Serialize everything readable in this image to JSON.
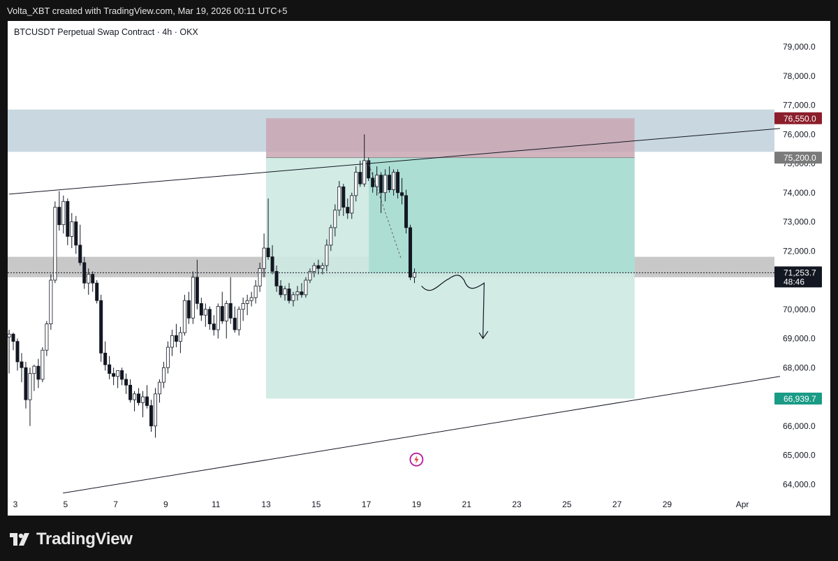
{
  "header": {
    "text": "Volta_XBT created with TradingView.com, Mar 19, 2026 00:11 UTC+5"
  },
  "symbol_line": "BTCUSDT Perpetual Swap Contract · 4h · OKX",
  "branding": {
    "logo_text": "TradingView",
    "logo_icon": "tradingview-logo-icon"
  },
  "colors": {
    "background": "#121212",
    "panel": "#ffffff",
    "up_candle": "#ffffff",
    "down_candle": "#131722",
    "supply_zone": "#c9d7e0",
    "mid_zone": "#c8c8c8",
    "stop_zone": "#c9a7b3",
    "target_zone": "#cde9e2",
    "target_zone_active": "#a8ddd2",
    "stop_tag": "#8b1e2b",
    "entry_tag": "#7a7a7a",
    "current_tag": "#131722",
    "target_tag": "#1a9b86"
  },
  "chart_data": {
    "type": "candlestick",
    "title": "BTCUSDT Perpetual Swap Contract · 4h · OKX",
    "timeframe": "4h",
    "ylim": [
      63600,
      79800
    ],
    "y_ticks": [
      64000,
      65000,
      66000,
      67000,
      68000,
      69000,
      70000,
      71000,
      72000,
      73000,
      74000,
      75000,
      76000,
      77000,
      78000,
      79000
    ],
    "y_tick_labels": [
      "64,000.0",
      "65,000.0",
      "66,000.0",
      "67,000.0",
      "68,000.0",
      "69,000.0",
      "70,000.0",
      "71,000.0",
      "72,000.0",
      "73,000.0",
      "74,000.0",
      "75,000.0",
      "76,000.0",
      "77,000.0",
      "78,000.0",
      "79,000.0"
    ],
    "x_ticks": [
      {
        "label": "3",
        "day": 3
      },
      {
        "label": "5",
        "day": 5
      },
      {
        "label": "7",
        "day": 7
      },
      {
        "label": "9",
        "day": 9
      },
      {
        "label": "11",
        "day": 11
      },
      {
        "label": "13",
        "day": 13
      },
      {
        "label": "15",
        "day": 15
      },
      {
        "label": "17",
        "day": 17
      },
      {
        "label": "19",
        "day": 19
      },
      {
        "label": "21",
        "day": 21
      },
      {
        "label": "23",
        "day": 23
      },
      {
        "label": "25",
        "day": 25
      },
      {
        "label": "27",
        "day": 27
      },
      {
        "label": "29",
        "day": 29
      },
      {
        "label": "Apr",
        "day": 32
      }
    ],
    "x_range_days": [
      2.75,
      33.5
    ],
    "candles_start_day": 2.75,
    "candle_step_days": 0.1667,
    "candles": [
      [
        69050,
        69300,
        67800,
        69150
      ],
      [
        69150,
        69200,
        68600,
        68900
      ],
      [
        68900,
        69000,
        67900,
        68200
      ],
      [
        68200,
        68500,
        67500,
        68000
      ],
      [
        68000,
        68200,
        66600,
        66900
      ],
      [
        66900,
        68000,
        66000,
        67800
      ],
      [
        67800,
        68100,
        67200,
        68050
      ],
      [
        68050,
        68300,
        67300,
        67600
      ],
      [
        67600,
        68700,
        67500,
        68600
      ],
      [
        68600,
        69600,
        68400,
        69500
      ],
      [
        69500,
        71200,
        69300,
        71000
      ],
      [
        71000,
        73700,
        70900,
        73500
      ],
      [
        73500,
        74050,
        72700,
        72900
      ],
      [
        72900,
        73900,
        72600,
        73700
      ],
      [
        73700,
        73800,
        72200,
        72500
      ],
      [
        72500,
        73300,
        72100,
        73000
      ],
      [
        73000,
        73200,
        71900,
        72200
      ],
      [
        72200,
        72900,
        71500,
        71600
      ],
      [
        71600,
        71800,
        70700,
        70900
      ],
      [
        70900,
        71400,
        70500,
        71200
      ],
      [
        71200,
        71300,
        70600,
        70900
      ],
      [
        70900,
        71000,
        70200,
        70300
      ],
      [
        70300,
        70500,
        68200,
        68500
      ],
      [
        68500,
        68900,
        67900,
        68100
      ],
      [
        68100,
        68400,
        67600,
        67800
      ],
      [
        67800,
        68000,
        67400,
        67700
      ],
      [
        67700,
        67900,
        67300,
        67900
      ],
      [
        67900,
        68000,
        67400,
        67600
      ],
      [
        67600,
        67800,
        67100,
        67400
      ],
      [
        67400,
        67600,
        66800,
        66900
      ],
      [
        66900,
        67200,
        66500,
        67100
      ],
      [
        67100,
        67300,
        66700,
        66800
      ],
      [
        66800,
        67200,
        66300,
        67000
      ],
      [
        67000,
        67400,
        66600,
        66700
      ],
      [
        66700,
        66900,
        65800,
        66000
      ],
      [
        66000,
        67300,
        65600,
        67100
      ],
      [
        67100,
        67600,
        66800,
        67500
      ],
      [
        67500,
        68200,
        67300,
        68000
      ],
      [
        68000,
        68900,
        67800,
        68700
      ],
      [
        68700,
        69300,
        68400,
        69100
      ],
      [
        69100,
        69500,
        68700,
        68900
      ],
      [
        68900,
        69400,
        68500,
        69200
      ],
      [
        69200,
        70500,
        69100,
        70300
      ],
      [
        70300,
        70600,
        69500,
        69700
      ],
      [
        69700,
        71300,
        69500,
        71100
      ],
      [
        71100,
        71700,
        70000,
        70200
      ],
      [
        70200,
        70400,
        69600,
        69800
      ],
      [
        69800,
        70200,
        69400,
        70000
      ],
      [
        70000,
        70100,
        69300,
        69500
      ],
      [
        69500,
        69800,
        69100,
        69300
      ],
      [
        69300,
        70200,
        69000,
        70100
      ],
      [
        70100,
        70600,
        69500,
        69600
      ],
      [
        69600,
        70300,
        69000,
        70200
      ],
      [
        70200,
        71100,
        69500,
        69700
      ],
      [
        69700,
        70100,
        69200,
        69300
      ],
      [
        69300,
        70100,
        69100,
        70000
      ],
      [
        70000,
        70400,
        69600,
        70200
      ],
      [
        70200,
        70500,
        69800,
        70300
      ],
      [
        70300,
        70600,
        70100,
        70400
      ],
      [
        70400,
        71000,
        70200,
        70800
      ],
      [
        70800,
        71600,
        70600,
        71400
      ],
      [
        71400,
        72600,
        71100,
        72100
      ],
      [
        72100,
        73800,
        71700,
        71800
      ],
      [
        71800,
        72200,
        71200,
        71300
      ],
      [
        71300,
        71500,
        70600,
        70800
      ],
      [
        70800,
        71000,
        70400,
        70500
      ],
      [
        70500,
        70800,
        70300,
        70700
      ],
      [
        70700,
        70900,
        70200,
        70300
      ],
      [
        70300,
        70600,
        70100,
        70500
      ],
      [
        70500,
        70800,
        70300,
        70600
      ],
      [
        70600,
        70900,
        70400,
        70500
      ],
      [
        70500,
        71100,
        70400,
        71000
      ],
      [
        71000,
        71400,
        70900,
        71300
      ],
      [
        71300,
        71600,
        71100,
        71500
      ],
      [
        71500,
        71700,
        71200,
        71400
      ],
      [
        71400,
        71600,
        71200,
        71500
      ],
      [
        71500,
        72400,
        71300,
        72200
      ],
      [
        72200,
        72900,
        72000,
        72800
      ],
      [
        72800,
        73600,
        72500,
        73400
      ],
      [
        73400,
        74400,
        73200,
        74200
      ],
      [
        74200,
        74300,
        73200,
        73500
      ],
      [
        73500,
        73800,
        73100,
        73300
      ],
      [
        73300,
        74000,
        73100,
        73900
      ],
      [
        73900,
        74900,
        73700,
        74700
      ],
      [
        74700,
        75100,
        74200,
        74300
      ],
      [
        74300,
        76000,
        74200,
        75100
      ],
      [
        75100,
        75200,
        74400,
        74500
      ],
      [
        74500,
        74700,
        74000,
        74200
      ],
      [
        74200,
        74900,
        73900,
        74600
      ],
      [
        74600,
        74700,
        73300,
        74000
      ],
      [
        74000,
        74800,
        73700,
        74600
      ],
      [
        74600,
        74900,
        74000,
        74100
      ],
      [
        74100,
        74800,
        73900,
        74700
      ],
      [
        74700,
        74800,
        73800,
        74000
      ],
      [
        74000,
        74500,
        73600,
        73900
      ],
      [
        73900,
        74100,
        72600,
        72800
      ],
      [
        72800,
        72900,
        71000,
        71100
      ],
      [
        71100,
        71400,
        70900,
        71254
      ]
    ],
    "annotations": {
      "supply_zone": [
        75400,
        76850
      ],
      "mid_zone": [
        71100,
        71800
      ],
      "long_short_position": {
        "entry": 75200,
        "stop": 76550,
        "target": 66939.7,
        "start_day": 13.0,
        "end_day": 27.7
      },
      "upper_trendline": [
        [
          2.75,
          73950
        ],
        [
          33.5,
          76200
        ]
      ],
      "lower_trendline": [
        [
          4.9,
          63700
        ],
        [
          33.5,
          67700
        ]
      ],
      "current_price": 71253.7,
      "countdown": "48:46",
      "price_tags": [
        {
          "value": 76550,
          "label": "76,550.0",
          "kind": "stop"
        },
        {
          "value": 75200,
          "label": "75,200.0",
          "kind": "entry"
        },
        {
          "value": 71253.7,
          "label": "71,253.7",
          "sub": "48:46",
          "kind": "current"
        },
        {
          "value": 66939.7,
          "label": "66,939.7",
          "kind": "target"
        }
      ]
    }
  }
}
